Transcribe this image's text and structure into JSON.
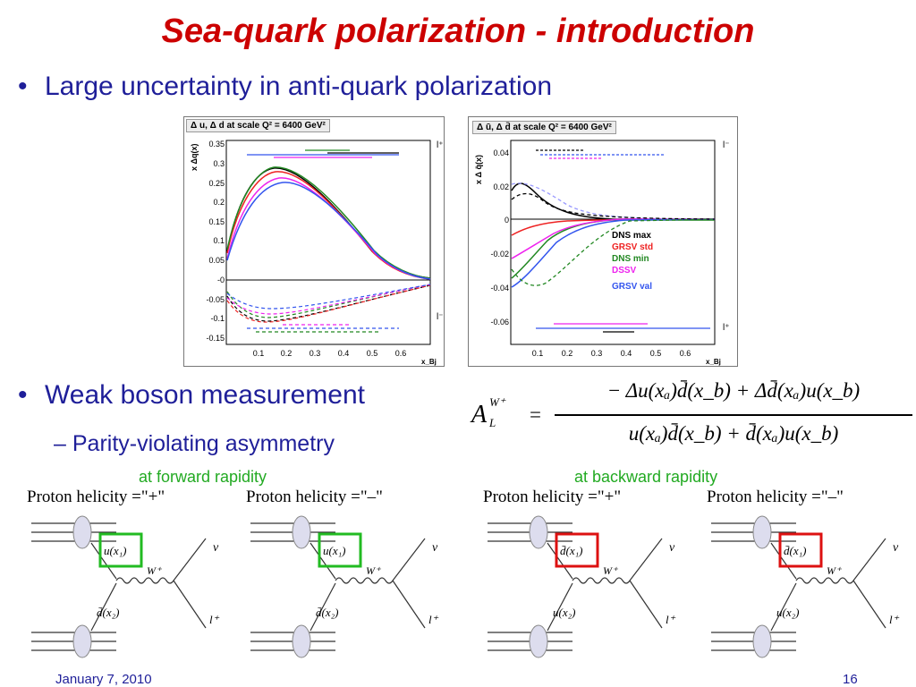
{
  "title": "Sea-quark polarization - introduction",
  "bullets": [
    {
      "marker": "•",
      "text": "Large uncertainty in anti-quark polarization"
    },
    {
      "marker": "•",
      "text": "Weak boson measurement"
    }
  ],
  "subbullet": {
    "marker": "–",
    "text": "Parity-violating asymmetry"
  },
  "formula": {
    "lhs": "A",
    "lhs_sup": "W⁺",
    "lhs_sub": "L",
    "equals": "=",
    "numerator": "− Δu(xₐ)d̄(x_b) + Δd̄(xₐ)u(x_b)",
    "denominator": "u(xₐ)d̄(x_b) + d̄(xₐ)u(x_b)"
  },
  "notes": {
    "forward": "at forward rapidity",
    "backward": "at backward rapidity"
  },
  "left_plot": {
    "header": "Δ u, Δ d at scale Q² =  6400 GeV²",
    "ylabel": "x Δq(x)",
    "xlabel": "x_Bj",
    "right_top": "l⁺",
    "right_bottom": "l⁻",
    "yticks": [
      "0.35",
      "0.3",
      "0.25",
      "0.2",
      "0.15",
      "0.1",
      "0.05",
      "-0",
      "-0.05",
      "-0.1",
      "-0.15"
    ],
    "xticks": [
      "0.1",
      "0.2",
      "0.3",
      "0.4",
      "0.5",
      "0.6"
    ]
  },
  "right_plot": {
    "header": "Δ ū, Δ d̄ at scale Q² =  6400 GeV²",
    "ylabel": "x Δ q̄(x)",
    "xlabel": "x_Bj",
    "right_top": "l⁻",
    "right_bottom": "l⁺",
    "yticks": [
      "0.04",
      "0.02",
      "0",
      "-0.02",
      "-0.04",
      "-0.06"
    ],
    "xticks": [
      "0.1",
      "0.2",
      "0.3",
      "0.4",
      "0.5",
      "0.6"
    ],
    "legend": [
      {
        "label": "DNS max",
        "color": "#000000"
      },
      {
        "label": "GRSV std",
        "color": "#ee2222"
      },
      {
        "label": "DNS min",
        "color": "#228822"
      },
      {
        "label": "DSSV",
        "color": "#ee22ee"
      },
      {
        "label": "GRSV val",
        "color": "#3355ee"
      }
    ]
  },
  "diagrams": [
    {
      "header": "Proton helicity =\"+\"",
      "quark": "u(x₁)",
      "antiquark": "d̄(x₂)",
      "boson": "W⁺",
      "lepton": "l⁺",
      "neutrino": "ν",
      "box_color": "#22bb22"
    },
    {
      "header": "Proton helicity =\"–\"",
      "quark": "u(x₁)",
      "antiquark": "d̄(x₂)",
      "boson": "W⁺",
      "lepton": "l⁺",
      "neutrino": "ν",
      "box_color": "#22bb22"
    },
    {
      "header": "Proton helicity =\"+\"",
      "quark": "d̄(x₁)",
      "antiquark": "u(x₂)",
      "boson": "W⁺",
      "lepton": "l⁺",
      "neutrino": "ν",
      "box_color": "#dd1111"
    },
    {
      "header": "Proton helicity =\"–\"",
      "quark": "d̄(x₁)",
      "antiquark": "u(x₂)",
      "boson": "W⁺",
      "lepton": "l⁺",
      "neutrino": "ν",
      "box_color": "#dd1111"
    }
  ],
  "footer": {
    "date": "January 7, 2010",
    "page": "16"
  }
}
